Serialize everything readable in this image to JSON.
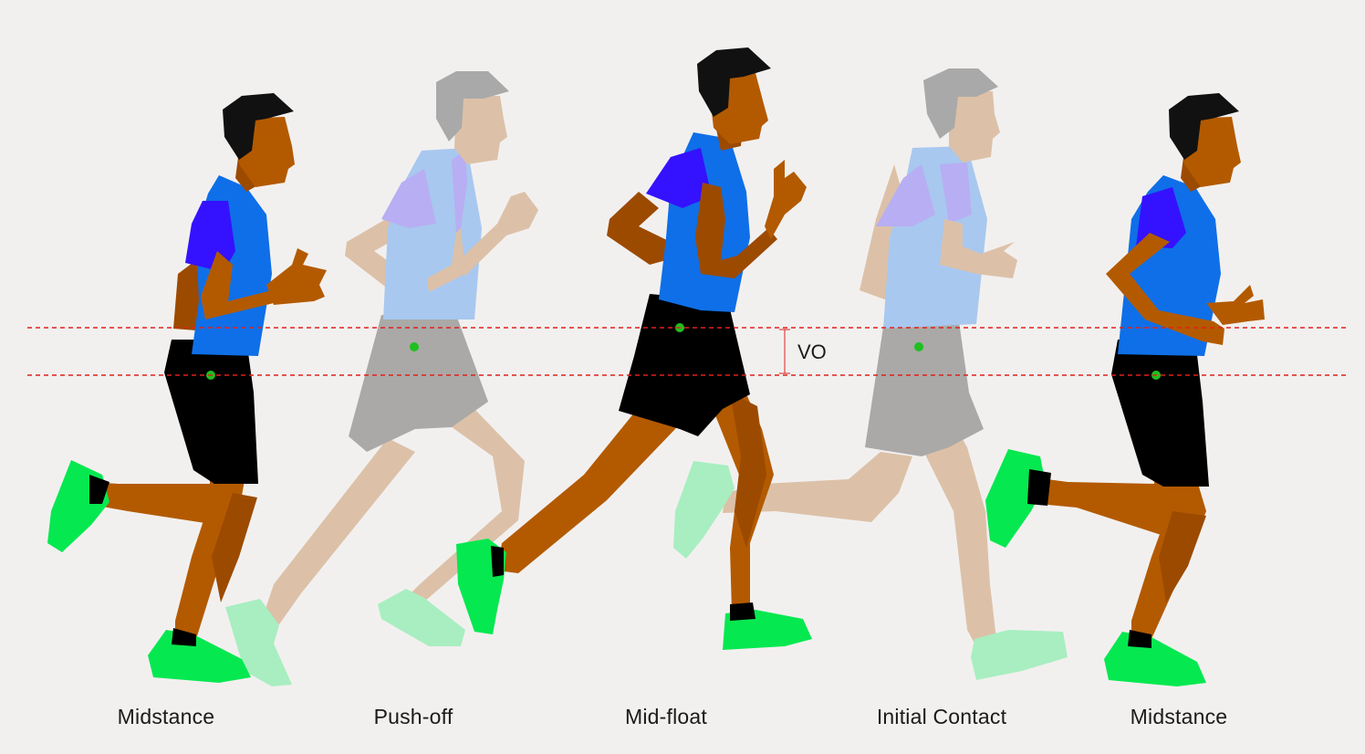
{
  "phases": [
    {
      "label": "Midstance",
      "style": "solid"
    },
    {
      "label": "Push-off",
      "style": "faded"
    },
    {
      "label": "Mid-float",
      "style": "solid"
    },
    {
      "label": "Initial Contact",
      "style": "faded"
    },
    {
      "label": "Midstance",
      "style": "solid"
    }
  ],
  "measurement": {
    "label": "VO"
  },
  "colors": {
    "background": "#f2f0ef",
    "skin": "#b35a00",
    "skin_dark": "#9c4a00",
    "hair": "#111111",
    "shirt": "#0f6fe8",
    "sleeve": "#3412ff",
    "shorts": "#000000",
    "shoe": "#05e850",
    "center_of_mass": "#1fbf1f",
    "reference_line": "#e0211d",
    "faded_skin": "#dcc1a8",
    "faded_hair": "#a9a9a9",
    "faded_shirt": "#a8c8ef",
    "faded_sleeve": "#b8aef3",
    "faded_shorts": "#aaa9a7",
    "faded_shoe": "#a8eec0"
  },
  "icons": [
    "runner-figure",
    "center-of-mass-dot",
    "dashed-reference-line"
  ]
}
